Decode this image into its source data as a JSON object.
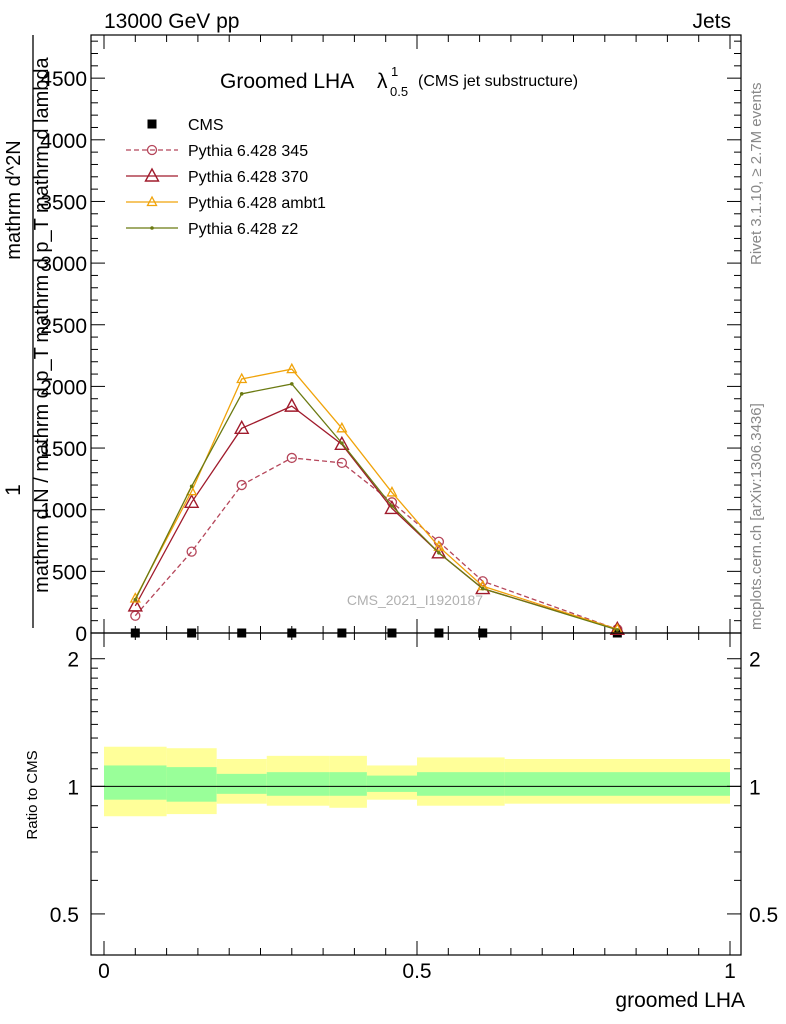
{
  "header": {
    "left": "13000 GeV pp",
    "right": "Jets"
  },
  "side_text": {
    "rivet": "Rivet 3.1.10, ≥ 2.7M events",
    "mcplots": "mcplots.cern.ch [arXiv:1306.3436]"
  },
  "watermark": "CMS_2021_I1920187",
  "chart_data": [
    {
      "type": "line",
      "title": "Groomed LHA λ^1_0.5 (CMS jet substructure)",
      "title_parts": {
        "main": "Groomed LHA",
        "symbol": "λ",
        "sup": "1",
        "sub": "0.5",
        "note": "(CMS jet substructure)"
      },
      "ylabel_lines": [
        "1",
        "mathrm d N / mathrm d p_T",
        "mathrm d^2N",
        "mathrm d p_T mathrm d lambda"
      ],
      "xlim": [
        0,
        1
      ],
      "ylim": [
        0,
        4850
      ],
      "yticks": [
        0,
        500,
        1000,
        1500,
        2000,
        2500,
        3000,
        3500,
        4000,
        4500
      ],
      "ytick_labels": [
        "0",
        "500",
        "1000",
        "1500",
        "2000",
        "2500",
        "3000",
        "3500",
        "4000",
        "4500"
      ],
      "legend_position": "top-left",
      "x": [
        0.05,
        0.14,
        0.22,
        0.3,
        0.38,
        0.46,
        0.535,
        0.605,
        0.82
      ],
      "series": [
        {
          "name": "CMS",
          "color": "#000000",
          "style": "marker-square",
          "values": [
            0,
            0,
            0,
            0,
            0,
            0,
            0,
            0,
            0
          ]
        },
        {
          "name": "Pythia 6.428 345",
          "color": "#b5465a",
          "style": "dashed-circle",
          "values": [
            140,
            660,
            1200,
            1420,
            1380,
            1060,
            740,
            420,
            30
          ]
        },
        {
          "name": "Pythia 6.428 370",
          "color": "#a01b2c",
          "style": "solid-triangle",
          "values": [
            220,
            1060,
            1660,
            1840,
            1530,
            1010,
            650,
            360,
            30
          ]
        },
        {
          "name": "Pythia 6.428 ambt1",
          "color": "#f0a30a",
          "style": "solid-triangle-small",
          "values": [
            280,
            1150,
            2060,
            2140,
            1660,
            1140,
            700,
            380,
            30
          ]
        },
        {
          "name": "Pythia 6.428 z2",
          "color": "#6b7a12",
          "style": "solid-dot",
          "values": [
            270,
            1190,
            1940,
            2020,
            1540,
            1030,
            650,
            360,
            25
          ]
        }
      ]
    },
    {
      "type": "area",
      "ylabel": "Ratio to CMS",
      "xlabel": "groomed LHA",
      "xlim": [
        0,
        1
      ],
      "ylim": [
        0.4,
        2.3
      ],
      "scale": "log",
      "yticks": [
        0.5,
        1,
        2
      ],
      "ytick_labels": [
        "0.5",
        "1",
        "2"
      ],
      "xticks": [
        0,
        0.5,
        1
      ],
      "xtick_labels": [
        "0",
        "0.5",
        "1"
      ],
      "bin_edges": [
        0,
        0.1,
        0.18,
        0.26,
        0.36,
        0.42,
        0.5,
        0.64,
        1.0
      ],
      "band_yellow_low": [
        0.85,
        0.86,
        0.91,
        0.9,
        0.89,
        0.93,
        0.9,
        0.91,
        0.79
      ],
      "band_yellow_high": [
        1.24,
        1.23,
        1.16,
        1.18,
        1.18,
        1.12,
        1.17,
        1.16,
        1.32
      ],
      "band_green_low": [
        0.93,
        0.92,
        0.96,
        0.95,
        0.95,
        0.97,
        0.95,
        0.95,
        0.9
      ],
      "band_green_high": [
        1.12,
        1.11,
        1.07,
        1.08,
        1.08,
        1.06,
        1.08,
        1.08,
        1.17
      ],
      "colors": {
        "yellow": "#ffff99",
        "green": "#99ff99",
        "line": "#000000"
      }
    }
  ]
}
